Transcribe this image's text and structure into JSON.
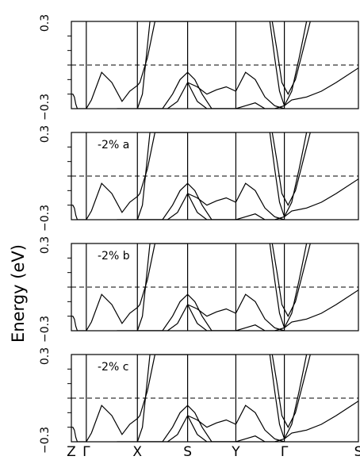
{
  "chart_data": {
    "type": "line",
    "ylabel": "Energy (eV)",
    "ylim": [
      -0.3,
      0.3
    ],
    "y_tick_labels": [
      "0.3",
      "−0.3"
    ],
    "x_kpoints": [
      "Z",
      "Γ",
      "X",
      "S",
      "Y",
      "Γ",
      "S"
    ],
    "x_kpoint_positions": [
      0,
      1,
      2,
      3,
      4,
      5,
      6
    ],
    "xlim": [
      0,
      6
    ],
    "fermi_level": 0,
    "fermi_line_style": "dashed",
    "panels": [
      {
        "label": "",
        "series": [
          {
            "x": [
              0,
              0.1,
              0.2,
              0.3,
              0.4,
              0.5,
              0.7,
              1.0
            ],
            "y": [
              -0.2,
              -0.2,
              -0.22,
              -0.27,
              -0.3,
              -0.3,
              -0.3,
              -0.3
            ]
          },
          {
            "x": [
              1.0,
              1.1,
              1.3,
              1.5,
              1.7,
              1.85,
              2.0
            ],
            "y": [
              -0.3,
              -0.24,
              -0.05,
              -0.12,
              -0.25,
              -0.18,
              -0.14
            ]
          },
          {
            "x": [
              1.6,
              1.7,
              1.85,
              2.0,
              2.1,
              2.25,
              2.4,
              2.6,
              2.8,
              3.0
            ],
            "y": [
              -0.3,
              -0.3,
              -0.3,
              -0.3,
              -0.2,
              0.3,
              0.3,
              0.3,
              0.3,
              0.3
            ]
          },
          {
            "x": [
              2.0,
              2.05,
              2.2,
              2.35,
              2.5,
              2.7,
              2.9,
              3.0,
              3.1,
              3.3,
              3.5,
              3.7,
              3.9,
              4.0
            ],
            "y": [
              -0.14,
              -0.12,
              0.05,
              0.3,
              0.3,
              0.3,
              0.3,
              0.3,
              0.3,
              0.3,
              0.3,
              0.3,
              0.3,
              0.3
            ]
          },
          {
            "x": [
              2.0,
              2.15,
              2.3,
              2.5,
              2.7,
              2.85,
              3.0,
              3.15,
              3.3,
              3.5,
              3.7,
              3.85,
              4.0
            ],
            "y": [
              -0.3,
              -0.3,
              -0.3,
              -0.3,
              -0.2,
              -0.1,
              -0.05,
              -0.1,
              -0.2,
              -0.3,
              -0.3,
              -0.3,
              -0.3
            ]
          },
          {
            "x": [
              2.0,
              2.3,
              2.6,
              2.8,
              3.0,
              3.2,
              3.4,
              3.7,
              4.0
            ],
            "y": [
              -0.3,
              -0.3,
              -0.3,
              -0.25,
              -0.12,
              -0.25,
              -0.3,
              -0.3,
              -0.3
            ]
          },
          {
            "x": [
              3.0,
              3.2,
              3.4,
              3.6,
              3.8,
              4.0,
              4.2,
              4.4,
              4.6,
              4.8,
              5.0
            ],
            "y": [
              -0.12,
              -0.15,
              -0.2,
              -0.17,
              -0.15,
              -0.18,
              -0.05,
              -0.1,
              -0.22,
              -0.28,
              -0.3
            ]
          },
          {
            "x": [
              4.0,
              4.2,
              4.4,
              4.6,
              4.8,
              5.0,
              5.1,
              5.3,
              5.5,
              5.7,
              6.0
            ],
            "y": [
              -0.3,
              -0.28,
              -0.26,
              -0.3,
              -0.3,
              -0.28,
              -0.24,
              -0.22,
              -0.18,
              -0.12,
              -0.02
            ]
          },
          {
            "x": [
              4.7,
              4.8,
              4.9,
              5.0,
              5.1,
              5.2,
              5.3
            ],
            "y": [
              0.3,
              0.05,
              -0.18,
              -0.28,
              -0.18,
              0.05,
              0.3
            ]
          },
          {
            "x": [
              4.75,
              4.85,
              4.95,
              5.05,
              5.15,
              5.25,
              5.35
            ],
            "y": [
              0.3,
              0.1,
              -0.12,
              -0.2,
              -0.1,
              0.1,
              0.3
            ]
          }
        ]
      },
      {
        "label": "-2% a",
        "series": [
          {
            "x": [
              0,
              0.1,
              0.2,
              0.3,
              0.4,
              0.5,
              0.7,
              1.0
            ],
            "y": [
              -0.2,
              -0.2,
              -0.22,
              -0.27,
              -0.3,
              -0.3,
              -0.3,
              -0.3
            ]
          },
          {
            "x": [
              1.0,
              1.1,
              1.3,
              1.5,
              1.7,
              1.85,
              2.0
            ],
            "y": [
              -0.3,
              -0.24,
              -0.05,
              -0.12,
              -0.25,
              -0.18,
              -0.14
            ]
          },
          {
            "x": [
              1.6,
              1.7,
              1.85,
              2.0,
              2.1,
              2.25,
              2.4,
              2.6,
              2.8,
              3.0
            ],
            "y": [
              -0.3,
              -0.3,
              -0.3,
              -0.3,
              -0.2,
              0.3,
              0.3,
              0.3,
              0.3,
              0.3
            ]
          },
          {
            "x": [
              2.0,
              2.05,
              2.2,
              2.35,
              2.5,
              2.7,
              2.9,
              3.0,
              3.1,
              3.3,
              3.5,
              3.7,
              3.9,
              4.0
            ],
            "y": [
              -0.14,
              -0.12,
              0.05,
              0.3,
              0.3,
              0.3,
              0.3,
              0.3,
              0.3,
              0.3,
              0.3,
              0.3,
              0.3,
              0.3
            ]
          },
          {
            "x": [
              2.0,
              2.15,
              2.3,
              2.5,
              2.7,
              2.85,
              3.0,
              3.15,
              3.3,
              3.5,
              3.7,
              3.85,
              4.0
            ],
            "y": [
              -0.3,
              -0.3,
              -0.3,
              -0.3,
              -0.2,
              -0.1,
              -0.05,
              -0.1,
              -0.2,
              -0.3,
              -0.3,
              -0.3,
              -0.3
            ]
          },
          {
            "x": [
              2.0,
              2.3,
              2.6,
              2.8,
              3.0,
              3.2,
              3.4,
              3.7,
              4.0
            ],
            "y": [
              -0.3,
              -0.3,
              -0.3,
              -0.25,
              -0.12,
              -0.25,
              -0.3,
              -0.3,
              -0.3
            ]
          },
          {
            "x": [
              3.0,
              3.2,
              3.4,
              3.6,
              3.8,
              4.0,
              4.2,
              4.4,
              4.6,
              4.8,
              5.0
            ],
            "y": [
              -0.12,
              -0.15,
              -0.2,
              -0.17,
              -0.15,
              -0.18,
              -0.05,
              -0.1,
              -0.22,
              -0.28,
              -0.3
            ]
          },
          {
            "x": [
              4.0,
              4.2,
              4.4,
              4.6,
              4.8,
              5.0,
              5.1,
              5.3,
              5.5,
              5.7,
              6.0
            ],
            "y": [
              -0.3,
              -0.28,
              -0.26,
              -0.3,
              -0.3,
              -0.28,
              -0.24,
              -0.22,
              -0.18,
              -0.12,
              -0.02
            ]
          },
          {
            "x": [
              4.7,
              4.8,
              4.9,
              5.0,
              5.1,
              5.2,
              5.3
            ],
            "y": [
              0.3,
              0.05,
              -0.18,
              -0.28,
              -0.18,
              0.05,
              0.3
            ]
          },
          {
            "x": [
              4.75,
              4.85,
              4.95,
              5.05,
              5.15,
              5.25,
              5.35
            ],
            "y": [
              0.3,
              0.1,
              -0.12,
              -0.2,
              -0.1,
              0.1,
              0.3
            ]
          }
        ]
      },
      {
        "label": "-2% b",
        "series": [
          {
            "x": [
              0,
              0.1,
              0.2,
              0.3,
              0.4,
              0.5,
              0.7,
              1.0
            ],
            "y": [
              -0.2,
              -0.2,
              -0.22,
              -0.27,
              -0.3,
              -0.3,
              -0.3,
              -0.3
            ]
          },
          {
            "x": [
              1.0,
              1.1,
              1.3,
              1.5,
              1.7,
              1.85,
              2.0
            ],
            "y": [
              -0.3,
              -0.24,
              -0.05,
              -0.12,
              -0.25,
              -0.18,
              -0.14
            ]
          },
          {
            "x": [
              1.6,
              1.7,
              1.85,
              2.0,
              2.1,
              2.25,
              2.4,
              2.6,
              2.8,
              3.0
            ],
            "y": [
              -0.3,
              -0.3,
              -0.3,
              -0.3,
              -0.2,
              0.3,
              0.3,
              0.3,
              0.3,
              0.3
            ]
          },
          {
            "x": [
              2.0,
              2.05,
              2.2,
              2.35,
              2.5,
              2.7,
              2.9,
              3.0,
              3.1,
              3.3,
              3.5,
              3.7,
              3.9,
              4.0
            ],
            "y": [
              -0.14,
              -0.12,
              0.05,
              0.3,
              0.3,
              0.3,
              0.3,
              0.3,
              0.3,
              0.3,
              0.3,
              0.3,
              0.3,
              0.3
            ]
          },
          {
            "x": [
              2.0,
              2.15,
              2.3,
              2.5,
              2.7,
              2.85,
              3.0,
              3.15,
              3.3,
              3.5,
              3.7,
              3.85,
              4.0
            ],
            "y": [
              -0.3,
              -0.3,
              -0.3,
              -0.3,
              -0.2,
              -0.1,
              -0.05,
              -0.1,
              -0.2,
              -0.3,
              -0.3,
              -0.3,
              -0.3
            ]
          },
          {
            "x": [
              2.0,
              2.3,
              2.6,
              2.8,
              3.0,
              3.2,
              3.4,
              3.7,
              4.0
            ],
            "y": [
              -0.3,
              -0.3,
              -0.3,
              -0.25,
              -0.12,
              -0.25,
              -0.3,
              -0.3,
              -0.3
            ]
          },
          {
            "x": [
              3.0,
              3.2,
              3.4,
              3.6,
              3.8,
              4.0,
              4.2,
              4.4,
              4.6,
              4.8,
              5.0
            ],
            "y": [
              -0.12,
              -0.15,
              -0.2,
              -0.17,
              -0.15,
              -0.18,
              -0.05,
              -0.1,
              -0.22,
              -0.28,
              -0.3
            ]
          },
          {
            "x": [
              4.0,
              4.2,
              4.4,
              4.6,
              4.8,
              5.0,
              5.1,
              5.3,
              5.5,
              5.7,
              6.0
            ],
            "y": [
              -0.3,
              -0.28,
              -0.26,
              -0.3,
              -0.3,
              -0.28,
              -0.24,
              -0.22,
              -0.18,
              -0.12,
              -0.02
            ]
          },
          {
            "x": [
              4.7,
              4.8,
              4.9,
              5.0,
              5.1,
              5.2,
              5.3
            ],
            "y": [
              0.3,
              0.05,
              -0.18,
              -0.28,
              -0.18,
              0.05,
              0.3
            ]
          },
          {
            "x": [
              4.75,
              4.85,
              4.95,
              5.05,
              5.15,
              5.25,
              5.35
            ],
            "y": [
              0.3,
              0.1,
              -0.12,
              -0.2,
              -0.1,
              0.1,
              0.3
            ]
          }
        ]
      },
      {
        "label": "-2% c",
        "series": [
          {
            "x": [
              0,
              0.1,
              0.2,
              0.3,
              0.4,
              0.5,
              0.7,
              1.0
            ],
            "y": [
              -0.2,
              -0.2,
              -0.22,
              -0.27,
              -0.3,
              -0.3,
              -0.3,
              -0.3
            ]
          },
          {
            "x": [
              1.0,
              1.1,
              1.3,
              1.5,
              1.7,
              1.85,
              2.0
            ],
            "y": [
              -0.3,
              -0.24,
              -0.05,
              -0.12,
              -0.25,
              -0.18,
              -0.14
            ]
          },
          {
            "x": [
              1.6,
              1.7,
              1.85,
              2.0,
              2.1,
              2.25,
              2.4,
              2.6,
              2.8,
              3.0
            ],
            "y": [
              -0.3,
              -0.3,
              -0.3,
              -0.3,
              -0.2,
              0.3,
              0.3,
              0.3,
              0.3,
              0.3
            ]
          },
          {
            "x": [
              2.0,
              2.05,
              2.2,
              2.35,
              2.5,
              2.7,
              2.9,
              3.0,
              3.1,
              3.3,
              3.5,
              3.7,
              3.9,
              4.0
            ],
            "y": [
              -0.14,
              -0.12,
              0.05,
              0.3,
              0.3,
              0.3,
              0.3,
              0.3,
              0.3,
              0.3,
              0.3,
              0.3,
              0.3,
              0.3
            ]
          },
          {
            "x": [
              2.0,
              2.15,
              2.3,
              2.5,
              2.7,
              2.85,
              3.0,
              3.15,
              3.3,
              3.5,
              3.7,
              3.85,
              4.0
            ],
            "y": [
              -0.3,
              -0.3,
              -0.3,
              -0.3,
              -0.2,
              -0.1,
              -0.05,
              -0.1,
              -0.2,
              -0.3,
              -0.3,
              -0.3,
              -0.3
            ]
          },
          {
            "x": [
              2.0,
              2.3,
              2.6,
              2.8,
              3.0,
              3.2,
              3.4,
              3.7,
              4.0
            ],
            "y": [
              -0.3,
              -0.3,
              -0.3,
              -0.25,
              -0.12,
              -0.25,
              -0.3,
              -0.3,
              -0.3
            ]
          },
          {
            "x": [
              3.0,
              3.2,
              3.4,
              3.6,
              3.8,
              4.0,
              4.2,
              4.4,
              4.6,
              4.8,
              5.0
            ],
            "y": [
              -0.12,
              -0.15,
              -0.2,
              -0.17,
              -0.15,
              -0.18,
              -0.05,
              -0.1,
              -0.22,
              -0.28,
              -0.3
            ]
          },
          {
            "x": [
              4.0,
              4.2,
              4.4,
              4.6,
              4.8,
              5.0,
              5.1,
              5.3,
              5.5,
              5.7,
              6.0
            ],
            "y": [
              -0.3,
              -0.28,
              -0.26,
              -0.3,
              -0.3,
              -0.28,
              -0.24,
              -0.22,
              -0.18,
              -0.12,
              -0.02
            ]
          },
          {
            "x": [
              4.7,
              4.8,
              4.9,
              5.0,
              5.1,
              5.2,
              5.3
            ],
            "y": [
              0.3,
              0.05,
              -0.18,
              -0.28,
              -0.18,
              0.05,
              0.3
            ]
          },
          {
            "x": [
              4.75,
              4.85,
              4.95,
              5.05,
              5.15,
              5.25,
              5.35
            ],
            "y": [
              0.3,
              0.1,
              -0.12,
              -0.2,
              -0.1,
              0.1,
              0.3
            ]
          }
        ]
      }
    ]
  }
}
